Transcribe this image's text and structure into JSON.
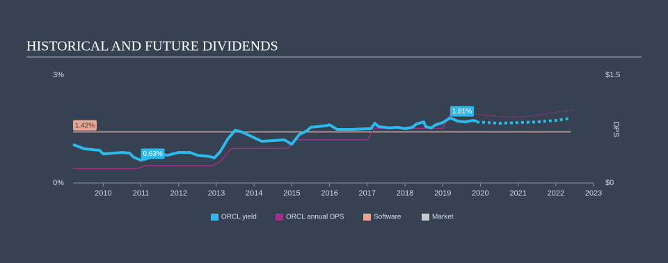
{
  "chart_data": {
    "type": "line",
    "title": "HISTORICAL AND FUTURE DIVIDENDS",
    "xlim": [
      2009.2,
      2023
    ],
    "xticks": [
      2010,
      2011,
      2012,
      2013,
      2014,
      2015,
      2016,
      2017,
      2018,
      2019,
      2020,
      2021,
      2022,
      2023
    ],
    "ylim": [
      0,
      3
    ],
    "yticks": [
      {
        "value": 0,
        "label": "0%"
      },
      {
        "value": 3,
        "label": "3%"
      }
    ],
    "y2lim": [
      0,
      1.5
    ],
    "y2ticks": [
      {
        "value": 0,
        "label": "$0"
      },
      {
        "value": 1.5,
        "label": "$1.5"
      }
    ],
    "y2label": "DPS",
    "series": [
      {
        "name": "ORCL yield",
        "color": "#2cb9ec",
        "x": [
          2009.2,
          2009.5,
          2009.9,
          2010.0,
          2010.5,
          2010.7,
          2010.8,
          2011.0,
          2011.3,
          2011.5,
          2011.7,
          2012.0,
          2012.3,
          2012.5,
          2012.8,
          2012.95,
          2013.1,
          2013.3,
          2013.5,
          2013.7,
          2014.0,
          2014.2,
          2014.8,
          2015.0,
          2015.2,
          2015.4,
          2015.5,
          2015.9,
          2016.0,
          2016.2,
          2016.6,
          2017.0,
          2017.1,
          2017.2,
          2017.3,
          2017.6,
          2017.8,
          2018.0,
          2018.2,
          2018.3,
          2018.5,
          2018.55,
          2018.7,
          2018.8,
          2019.0,
          2019.2,
          2019.4,
          2019.6,
          2019.8,
          2019.9
        ],
        "values": [
          1.07,
          0.95,
          0.91,
          0.81,
          0.85,
          0.83,
          0.72,
          0.63,
          0.72,
          0.81,
          0.77,
          0.85,
          0.85,
          0.77,
          0.74,
          0.7,
          0.87,
          1.22,
          1.47,
          1.41,
          1.26,
          1.16,
          1.2,
          1.08,
          1.35,
          1.45,
          1.55,
          1.59,
          1.62,
          1.49,
          1.49,
          1.51,
          1.51,
          1.66,
          1.57,
          1.53,
          1.55,
          1.51,
          1.55,
          1.64,
          1.7,
          1.57,
          1.53,
          1.61,
          1.68,
          1.81,
          1.72,
          1.7,
          1.74,
          1.72
        ],
        "forecast": {
          "x": [
            2019.9,
            2020.5,
            2021.0,
            2021.5,
            2022.0,
            2022.4
          ],
          "values": [
            1.7,
            1.66,
            1.68,
            1.7,
            1.74,
            1.8
          ]
        }
      },
      {
        "name": "ORCL annual DPS",
        "color": "#a02f8c",
        "axis": "y2",
        "x": [
          2009.2,
          2010.9,
          2011.1,
          2012.9,
          2013.1,
          2013.4,
          2014.9,
          2015.1,
          2017.0,
          2017.2,
          2019.0,
          2019.2,
          2019.8
        ],
        "values": [
          0.2,
          0.2,
          0.24,
          0.24,
          0.3,
          0.48,
          0.48,
          0.6,
          0.6,
          0.76,
          0.76,
          0.96,
          0.96
        ],
        "forecast": {
          "x": [
            2019.8,
            2020.5,
            2021.0,
            2021.5,
            2022.0,
            2022.5
          ],
          "values": [
            0.96,
            0.92,
            0.92,
            0.94,
            0.98,
            1.02
          ]
        }
      },
      {
        "name": "Software",
        "color": "#e9a593",
        "x": [
          2009.2,
          2022.4
        ],
        "values": [
          1.42,
          1.42
        ]
      },
      {
        "name": "Market",
        "color": "#c9c9c9",
        "x": [],
        "values": []
      }
    ],
    "annotations": [
      {
        "x": 2009.2,
        "value": 1.42,
        "label": "1.42%",
        "color": "#e9a593"
      },
      {
        "x": 2011.0,
        "value": 0.63,
        "label": "0.63%",
        "color": "#2cb9ec"
      },
      {
        "x": 2019.2,
        "value": 1.81,
        "label": "1.81%",
        "color": "#2cb9ec"
      }
    ]
  }
}
